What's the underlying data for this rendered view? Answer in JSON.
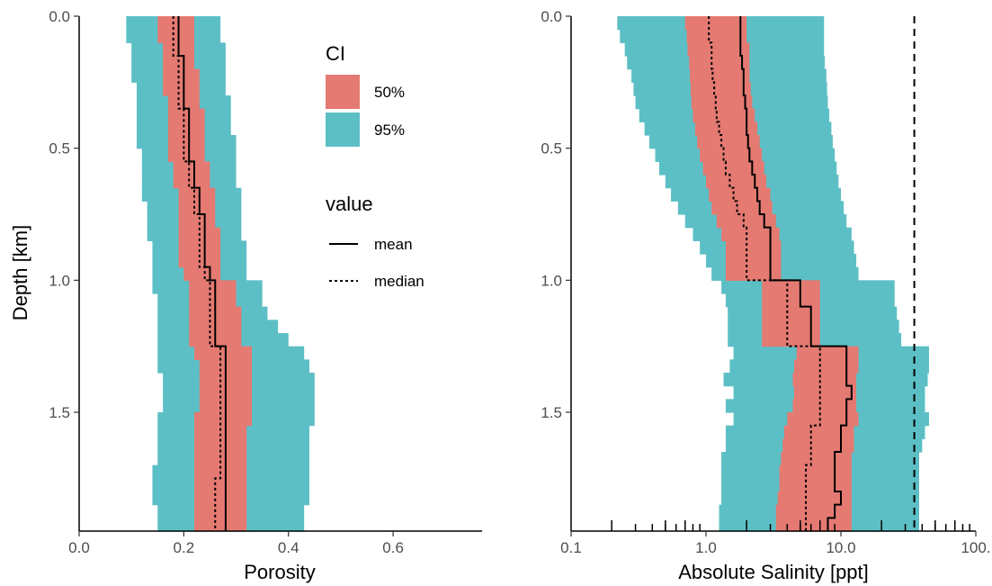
{
  "colors": {
    "ci50": "#E47A72",
    "ci95": "#5DBFC6",
    "line": "#000000"
  },
  "legend": {
    "ci_title": "CI",
    "ci_items": [
      {
        "label": "50%",
        "color": "#E47A72"
      },
      {
        "label": "95%",
        "color": "#5DBFC6"
      }
    ],
    "value_title": "value",
    "value_items": [
      {
        "label": "mean",
        "dash": "solid"
      },
      {
        "label": "median",
        "dash": "dotted"
      }
    ]
  },
  "chart_data": [
    {
      "type": "area",
      "xlabel": "Porosity",
      "ylabel": "Depth [km]",
      "xlim": [
        0,
        0.77
      ],
      "ylim": [
        0,
        1.95
      ],
      "y_reversed": true,
      "x_ticks": [
        0.0,
        0.2,
        0.4,
        0.6
      ],
      "x_tick_labels": [
        "0.0",
        "0.2",
        "0.4",
        "0.6"
      ],
      "y_ticks": [
        0.0,
        0.5,
        1.0,
        1.5
      ],
      "y_tick_labels": [
        "0.0",
        "0.5",
        "1.0",
        "1.5"
      ],
      "depth": [
        0.0,
        0.05,
        0.1,
        0.15,
        0.2,
        0.25,
        0.3,
        0.35,
        0.4,
        0.45,
        0.5,
        0.55,
        0.6,
        0.65,
        0.7,
        0.75,
        0.8,
        0.85,
        0.9,
        0.95,
        1.0,
        1.05,
        1.1,
        1.15,
        1.2,
        1.25,
        1.3,
        1.35,
        1.4,
        1.45,
        1.5,
        1.55,
        1.6,
        1.65,
        1.7,
        1.75,
        1.8,
        1.85,
        1.9,
        1.95
      ],
      "ci95_low": [
        0.09,
        0.09,
        0.1,
        0.1,
        0.1,
        0.11,
        0.11,
        0.11,
        0.11,
        0.11,
        0.12,
        0.12,
        0.12,
        0.12,
        0.13,
        0.13,
        0.13,
        0.14,
        0.14,
        0.14,
        0.14,
        0.15,
        0.15,
        0.15,
        0.15,
        0.15,
        0.15,
        0.16,
        0.16,
        0.16,
        0.15,
        0.15,
        0.15,
        0.15,
        0.14,
        0.14,
        0.14,
        0.15,
        0.15,
        0.15
      ],
      "ci95_high": [
        0.27,
        0.27,
        0.28,
        0.28,
        0.28,
        0.28,
        0.29,
        0.29,
        0.29,
        0.3,
        0.3,
        0.3,
        0.3,
        0.31,
        0.31,
        0.31,
        0.31,
        0.32,
        0.32,
        0.32,
        0.35,
        0.35,
        0.36,
        0.38,
        0.4,
        0.43,
        0.44,
        0.45,
        0.45,
        0.45,
        0.45,
        0.44,
        0.44,
        0.44,
        0.44,
        0.44,
        0.44,
        0.43,
        0.43,
        0.43
      ],
      "ci50_low": [
        0.15,
        0.15,
        0.16,
        0.16,
        0.16,
        0.16,
        0.17,
        0.17,
        0.17,
        0.17,
        0.17,
        0.18,
        0.18,
        0.19,
        0.19,
        0.19,
        0.19,
        0.19,
        0.19,
        0.2,
        0.21,
        0.21,
        0.21,
        0.21,
        0.21,
        0.22,
        0.23,
        0.23,
        0.23,
        0.23,
        0.22,
        0.22,
        0.22,
        0.22,
        0.22,
        0.22,
        0.22,
        0.22,
        0.22,
        0.22
      ],
      "ci50_high": [
        0.22,
        0.22,
        0.22,
        0.22,
        0.23,
        0.23,
        0.23,
        0.24,
        0.24,
        0.24,
        0.24,
        0.25,
        0.25,
        0.26,
        0.26,
        0.26,
        0.27,
        0.27,
        0.27,
        0.27,
        0.3,
        0.3,
        0.31,
        0.31,
        0.31,
        0.33,
        0.33,
        0.33,
        0.33,
        0.33,
        0.33,
        0.32,
        0.32,
        0.32,
        0.32,
        0.32,
        0.32,
        0.32,
        0.32,
        0.32
      ],
      "mean": [
        0.19,
        0.19,
        0.19,
        0.2,
        0.2,
        0.2,
        0.2,
        0.21,
        0.21,
        0.21,
        0.21,
        0.22,
        0.22,
        0.23,
        0.23,
        0.24,
        0.24,
        0.24,
        0.24,
        0.25,
        0.26,
        0.26,
        0.26,
        0.26,
        0.26,
        0.28,
        0.28,
        0.28,
        0.28,
        0.28,
        0.28,
        0.28,
        0.28,
        0.28,
        0.28,
        0.28,
        0.28,
        0.28,
        0.28,
        0.28
      ],
      "median": [
        0.18,
        0.18,
        0.18,
        0.19,
        0.19,
        0.19,
        0.19,
        0.2,
        0.2,
        0.2,
        0.2,
        0.21,
        0.21,
        0.22,
        0.22,
        0.23,
        0.23,
        0.23,
        0.23,
        0.24,
        0.25,
        0.25,
        0.25,
        0.25,
        0.25,
        0.27,
        0.27,
        0.27,
        0.27,
        0.27,
        0.27,
        0.27,
        0.27,
        0.27,
        0.27,
        0.26,
        0.26,
        0.26,
        0.26,
        0.26
      ]
    },
    {
      "type": "area",
      "xlabel": "Absolute Salinity [ppt]",
      "ylabel": "",
      "x_scale": "log10",
      "xlim": [
        0.1,
        100
      ],
      "ylim": [
        0,
        1.95
      ],
      "y_reversed": true,
      "x_ticks": [
        0.1,
        1.0,
        10.0,
        100.0
      ],
      "x_tick_labels": [
        "0.1",
        "1.0",
        "10.0",
        "100."
      ],
      "y_ticks": [
        0.0,
        0.5,
        1.0,
        1.5
      ],
      "y_tick_labels": [
        "0.0",
        "0.5",
        "1.0",
        "1.5"
      ],
      "reference_line_x": 35,
      "rug_x": [
        0.2,
        0.3,
        0.4,
        0.5,
        0.5,
        0.6,
        0.7,
        0.8,
        0.9,
        2,
        3,
        4,
        5,
        5,
        6,
        7,
        8,
        9,
        20,
        30,
        40,
        50,
        50,
        60,
        70,
        80,
        90
      ],
      "depth": [
        0.0,
        0.05,
        0.1,
        0.15,
        0.2,
        0.25,
        0.3,
        0.35,
        0.4,
        0.45,
        0.5,
        0.55,
        0.6,
        0.65,
        0.7,
        0.75,
        0.8,
        0.85,
        0.9,
        0.95,
        1.0,
        1.05,
        1.1,
        1.15,
        1.2,
        1.25,
        1.3,
        1.35,
        1.4,
        1.45,
        1.5,
        1.55,
        1.6,
        1.65,
        1.7,
        1.75,
        1.8,
        1.85,
        1.9,
        1.95
      ],
      "ci95_low": [
        0.22,
        0.23,
        0.25,
        0.26,
        0.28,
        0.29,
        0.3,
        0.32,
        0.35,
        0.38,
        0.42,
        0.45,
        0.5,
        0.55,
        0.62,
        0.7,
        0.8,
        0.9,
        1.0,
        1.1,
        1.3,
        1.4,
        1.45,
        1.45,
        1.45,
        1.6,
        1.5,
        1.35,
        1.6,
        1.4,
        1.6,
        1.4,
        1.4,
        1.3,
        1.3,
        1.3,
        1.3,
        1.25,
        1.25,
        1.25
      ],
      "ci95_high": [
        7.5,
        7.5,
        7.5,
        7.6,
        7.8,
        7.9,
        8.0,
        8.2,
        8.5,
        8.7,
        9.0,
        9.3,
        9.6,
        10,
        10.5,
        11,
        12,
        12.5,
        13,
        13.5,
        25,
        25,
        26,
        27,
        28,
        45,
        45,
        44,
        42,
        42,
        45,
        42,
        40,
        38,
        38,
        38,
        38,
        38,
        38,
        38
      ],
      "ci50_low": [
        0.7,
        0.72,
        0.73,
        0.75,
        0.76,
        0.77,
        0.78,
        0.8,
        0.83,
        0.86,
        0.9,
        0.95,
        1.0,
        1.05,
        1.1,
        1.2,
        1.3,
        1.4,
        1.4,
        1.4,
        2.6,
        2.6,
        2.6,
        2.6,
        2.6,
        4.7,
        4.5,
        4.4,
        4.5,
        4.4,
        4.0,
        3.8,
        3.7,
        3.6,
        3.5,
        3.5,
        3.4,
        3.3,
        3.3,
        3.3
      ],
      "ci50_high": [
        2.0,
        2.0,
        2.1,
        2.1,
        2.1,
        2.15,
        2.2,
        2.3,
        2.4,
        2.5,
        2.6,
        2.7,
        2.8,
        3.0,
        3.1,
        3.3,
        3.5,
        3.6,
        3.6,
        3.6,
        7.0,
        7.0,
        7.0,
        7.0,
        7.0,
        13.5,
        13.5,
        13.0,
        13.0,
        13.0,
        13.5,
        12.5,
        12.5,
        12.0,
        12.0,
        12.0,
        12.0,
        12.0,
        12.0,
        12.0
      ],
      "mean": [
        1.8,
        1.8,
        1.8,
        1.85,
        1.9,
        1.9,
        1.95,
        2.0,
        2.0,
        2.05,
        2.1,
        2.2,
        2.3,
        2.4,
        2.5,
        2.7,
        3.0,
        3.0,
        3.0,
        3.0,
        5.0,
        5.0,
        6.0,
        6.0,
        6.0,
        11.0,
        11.0,
        11.0,
        12.0,
        11.0,
        11.0,
        10.0,
        10.0,
        9.0,
        9.0,
        9.0,
        10.0,
        9.0,
        8.0,
        8.0
      ],
      "median": [
        1.05,
        1.05,
        1.1,
        1.1,
        1.12,
        1.15,
        1.18,
        1.2,
        1.25,
        1.3,
        1.35,
        1.4,
        1.5,
        1.6,
        1.7,
        1.9,
        2.0,
        2.0,
        2.0,
        2.0,
        4.0,
        4.0,
        4.0,
        4.0,
        4.0,
        7.0,
        7.0,
        7.0,
        7.0,
        7.0,
        7.0,
        6.0,
        6.0,
        6.0,
        5.5,
        5.5,
        5.5,
        5.5,
        5.5,
        5.5
      ]
    }
  ]
}
